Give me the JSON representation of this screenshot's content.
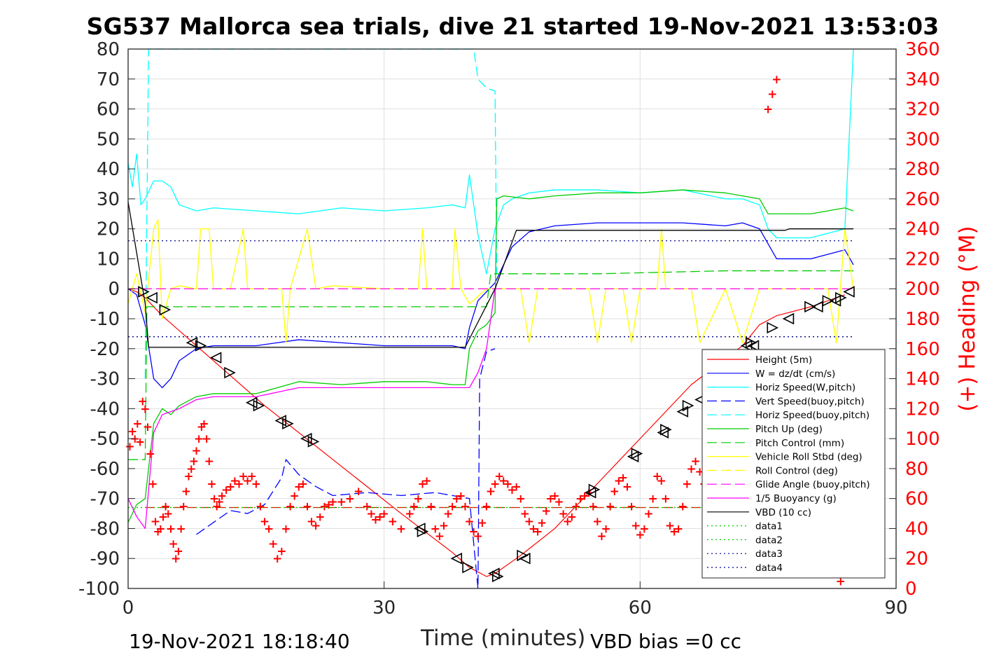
{
  "figure": {
    "title": "SG537 Mallorca sea trials, dive 21 started 19-Nov-2021 13:53:03",
    "footer_left": "19-Nov-2021 18:18:40",
    "footer_right": "VBD bias =0 cc"
  },
  "chart_data": {
    "type": "line",
    "xlabel": "Time (minutes)",
    "ylabel": "",
    "y2label": "(+) Heading (°M)",
    "xlim": [
      0,
      90
    ],
    "ylim": [
      -100,
      80
    ],
    "y2lim": [
      0,
      360
    ],
    "xticks": [
      0,
      30,
      60,
      90
    ],
    "yticks": [
      -100,
      -90,
      -80,
      -70,
      -60,
      -50,
      -40,
      -30,
      -20,
      -10,
      0,
      10,
      20,
      30,
      40,
      50,
      60,
      70,
      80
    ],
    "y2ticks": [
      0,
      20,
      40,
      60,
      80,
      100,
      120,
      140,
      160,
      180,
      200,
      220,
      240,
      260,
      280,
      300,
      320,
      340,
      360
    ],
    "grid": true,
    "legend_position": "bottom-right",
    "colors": {
      "red": "#ff0000",
      "blue": "#0000ff",
      "cyan": "#00ffff",
      "green": "#00cc00",
      "yellow": "#ffff00",
      "magenta": "#ff00ff",
      "black": "#000000",
      "navy": "#00008b"
    },
    "series": [
      {
        "name": "Height (5m)",
        "color": "#ff0000",
        "style": "solid",
        "x": [
          0,
          1,
          2,
          4,
          8,
          16,
          24,
          32,
          38,
          40,
          42,
          43,
          46,
          50,
          54,
          60,
          66,
          72,
          74,
          76,
          80,
          84
        ],
        "y": [
          0,
          -1,
          -3,
          -9,
          -19,
          -39,
          -57,
          -75,
          -88,
          -93,
          -96,
          -95,
          -89,
          -80,
          -68,
          -50,
          -32,
          -19,
          -12,
          -9,
          -6,
          -2
        ]
      },
      {
        "name": "W = dz/dt (cm/s)",
        "color": "#0000ff",
        "style": "solid",
        "x": [
          0,
          1,
          2,
          3,
          4,
          5,
          6,
          8,
          10,
          15,
          20,
          25,
          30,
          35,
          38,
          39.5,
          40,
          41,
          42,
          43,
          44,
          45,
          47,
          50,
          55,
          60,
          65,
          70,
          72,
          74,
          75,
          76,
          80,
          84,
          85
        ],
        "y": [
          0,
          -2,
          -12,
          -30,
          -33,
          -30,
          -24,
          -20,
          -19,
          -19,
          -17,
          -18,
          -19,
          -19,
          -19,
          -20,
          -13,
          -4,
          -1,
          2,
          8,
          14,
          19,
          21,
          22,
          22,
          22,
          21,
          22,
          20,
          15,
          10,
          10,
          13,
          8
        ]
      },
      {
        "name": "Horiz Speed(W,pitch)",
        "color": "#00ffff",
        "style": "solid",
        "x": [
          0,
          0.5,
          1,
          1.5,
          2,
          3,
          4,
          5,
          6,
          8,
          10,
          15,
          20,
          25,
          30,
          35,
          38,
          39.5,
          40,
          41,
          42,
          43,
          44,
          45,
          47,
          50,
          55,
          60,
          65,
          70,
          72,
          74,
          75,
          76,
          80,
          84,
          85
        ],
        "y": [
          42,
          34,
          45,
          28,
          30,
          36,
          36,
          34,
          28,
          26,
          27,
          26,
          25,
          27,
          26,
          27,
          28,
          27,
          38,
          18,
          5,
          20,
          28,
          30,
          32,
          33,
          33,
          32,
          33,
          30,
          30,
          28,
          20,
          17,
          17,
          20,
          80
        ]
      },
      {
        "name": "Vert Speed(buoy,pitch)",
        "color": "#0000ff",
        "style": "dashed",
        "x": [
          8,
          12,
          14,
          16,
          18,
          18.5,
          20,
          22,
          24,
          28,
          32,
          36,
          38,
          40,
          41,
          41.2,
          42,
          43
        ],
        "y": [
          -82,
          -74,
          -75,
          -72,
          -63,
          -57,
          -62,
          -66,
          -69,
          -68,
          -69,
          -68,
          -69,
          -70,
          -100,
          -30,
          -21,
          -20
        ]
      },
      {
        "name": "Horiz Speed(buoy,pitch)",
        "color": "#00ffff",
        "style": "dashed",
        "x": [
          2,
          2.4,
          2.6,
          40.5,
          41,
          42,
          43,
          43.2
        ],
        "y": [
          -30,
          80,
          80,
          80,
          70,
          67,
          66,
          5
        ]
      },
      {
        "name": "Pitch Up (deg)",
        "color": "#00cc00",
        "style": "solid",
        "x": [
          0,
          1,
          2,
          3,
          4,
          5,
          6,
          8,
          10,
          15,
          20,
          25,
          30,
          35,
          38,
          39.5,
          40,
          41,
          42,
          43,
          43.2,
          44,
          47,
          50,
          55,
          60,
          65,
          70,
          72,
          74,
          75,
          76,
          80,
          84,
          85
        ],
        "y": [
          -78,
          -72,
          -70,
          -45,
          -40,
          -42,
          -39,
          -36,
          -35,
          -35,
          -31,
          -32,
          -31,
          -31,
          -32,
          -32,
          -20,
          -14,
          -12,
          -8,
          30,
          31,
          30,
          31,
          32,
          32,
          33,
          32,
          31,
          30,
          25,
          25,
          25,
          27,
          26
        ]
      },
      {
        "name": "Pitch Control (mm)",
        "color": "#00cc00",
        "style": "dashed",
        "x": [
          0,
          2,
          2.2,
          10,
          30,
          42,
          42.5,
          43,
          55,
          70,
          85
        ],
        "y": [
          -57,
          -57,
          -6,
          -6,
          -6,
          -6,
          5,
          5,
          5,
          6,
          6
        ]
      },
      {
        "name": "Vehicle Roll Stbd (deg)",
        "color": "#ffff00",
        "style": "solid",
        "x": [
          0,
          1,
          2,
          3,
          3.5,
          4,
          5,
          6,
          8,
          8.5,
          9.5,
          10,
          12,
          13.5,
          14,
          16,
          18,
          18.5,
          19,
          21,
          22,
          24,
          30,
          34,
          34.5,
          35,
          38,
          38.3,
          39,
          40,
          42,
          44,
          46,
          47,
          48,
          52,
          54,
          55,
          56,
          58,
          59,
          60,
          62,
          62.5,
          63,
          66,
          67,
          70,
          72,
          74,
          78,
          82,
          83,
          84,
          85
        ],
        "y": [
          -5,
          5,
          -8,
          20,
          23,
          -10,
          0,
          1,
          0,
          20,
          20,
          0,
          0,
          20,
          0,
          0,
          0,
          -18,
          0,
          20,
          0,
          1,
          0,
          0,
          20,
          0,
          0,
          20,
          0,
          -5,
          0,
          0,
          0,
          -18,
          0,
          0,
          0,
          -18,
          0,
          0,
          -18,
          0,
          0,
          20,
          0,
          0,
          -18,
          0,
          -18,
          0,
          0,
          0,
          -18,
          20,
          0
        ]
      },
      {
        "name": "Roll Control (deg)",
        "color": "#ffff00",
        "style": "dashed",
        "x": [
          0,
          42,
          43,
          85
        ],
        "y": [
          0,
          0,
          0,
          0
        ]
      },
      {
        "name": "Glide Angle (buoy,pitch)",
        "color": "#ff00ff",
        "style": "dashed",
        "x": [
          0,
          42,
          43,
          85
        ],
        "y": [
          0,
          0,
          0,
          0
        ]
      },
      {
        "name": "1/5 Buoyancy (g)",
        "color": "#ff00ff",
        "style": "solid",
        "x": [
          0,
          1,
          2,
          3,
          4,
          6,
          8,
          10,
          15,
          20,
          25,
          30,
          35,
          38,
          40,
          41,
          42,
          43
        ],
        "y": [
          -70,
          -76,
          -80,
          -48,
          -42,
          -40,
          -37,
          -36,
          -36,
          -33,
          -33,
          -33,
          -33,
          -33,
          -33,
          -28,
          -20,
          0
        ]
      },
      {
        "name": "VBD (10 cc)",
        "color": "#000000",
        "style": "solid",
        "x": [
          0,
          2,
          2.4,
          5,
          10,
          20,
          30,
          38,
          39.5,
          43,
          45.5,
          50,
          60,
          70,
          77,
          77.5,
          85
        ],
        "y": [
          29,
          -5,
          -19.5,
          -19.5,
          -19.5,
          -19.5,
          -19.5,
          -19.5,
          -19.5,
          0,
          19.5,
          19.5,
          19.5,
          19.5,
          19.5,
          20,
          20
        ]
      },
      {
        "name": "data1",
        "color": "#00cc00",
        "style": "dotted",
        "x": [
          0,
          85
        ],
        "y": [
          -73,
          -73
        ]
      },
      {
        "name": "data2",
        "color": "#00cc00",
        "style": "dotted",
        "x": [
          0,
          85
        ],
        "y": [
          -73,
          -73
        ]
      },
      {
        "name": "data3",
        "color": "#00008b",
        "style": "dotted",
        "x": [
          0,
          85
        ],
        "y": [
          16,
          16
        ]
      },
      {
        "name": "data4",
        "color": "#00008b",
        "style": "dotted",
        "x": [
          0,
          85
        ],
        "y": [
          -16,
          -16
        ]
      }
    ],
    "reference_lines": [
      {
        "color": "#ff0000",
        "style": "dashed",
        "x": [
          2,
          85
        ],
        "y": [
          -73,
          -73
        ]
      }
    ],
    "heading_markers": {
      "marker": "+",
      "color": "#ff0000",
      "axis": "y2",
      "x": [
        0.2,
        0.5,
        0.8,
        1.1,
        1.4,
        1.7,
        2.0,
        2.3,
        2.6,
        2.9,
        3.2,
        3.5,
        3.8,
        4.1,
        4.4,
        4.7,
        5.0,
        5.3,
        5.6,
        5.9,
        6.2,
        6.5,
        6.8,
        7.1,
        7.4,
        7.7,
        8.0,
        8.3,
        8.6,
        8.9,
        9.2,
        9.5,
        9.8,
        10.1,
        10.4,
        10.7,
        11.0,
        11.5,
        12.0,
        12.5,
        13.0,
        13.5,
        14.0,
        14.5,
        15.0,
        15.5,
        16.0,
        16.5,
        17.0,
        17.5,
        18.0,
        18.5,
        19.0,
        19.5,
        20.0,
        20.5,
        21.0,
        21.5,
        22.0,
        22.5,
        23.0,
        23.5,
        24.0,
        25.0,
        26.0,
        27.0,
        28.0,
        28.5,
        29.0,
        29.5,
        30.0,
        31.0,
        32.0,
        33.0,
        33.5,
        34.0,
        34.5,
        35.0,
        35.5,
        36.0,
        36.5,
        37.0,
        37.5,
        38.0,
        38.5,
        39.0,
        39.5,
        40.0,
        40.5,
        41.0,
        41.5,
        42.0,
        42.5,
        43.0,
        43.5,
        44.0,
        44.5,
        45.0,
        45.5,
        46.0,
        46.5,
        47.0,
        47.5,
        48.0,
        48.5,
        49.0,
        49.5,
        50.0,
        50.5,
        51.0,
        51.5,
        52.0,
        52.5,
        53.0,
        53.5,
        54.0,
        54.5,
        55.0,
        55.5,
        56.0,
        56.5,
        57.0,
        57.5,
        58.0,
        58.5,
        59.0,
        59.5,
        60.0,
        60.5,
        61.0,
        61.5,
        62.0,
        62.5,
        63.0,
        63.5,
        64.0,
        64.5,
        65.0,
        65.5,
        66.0,
        66.5,
        67.0,
        67.5,
        68.0,
        68.5,
        69.0,
        69.5,
        70.0,
        70.5,
        71.0,
        71.5,
        72.0,
        72.5,
        73.0,
        73.5,
        74.0,
        74.5,
        75.0,
        75.5,
        76.0,
        83.5
      ],
      "y": [
        95,
        105,
        100,
        110,
        98,
        125,
        120,
        108,
        90,
        70,
        45,
        38,
        40,
        48,
        55,
        50,
        40,
        30,
        20,
        25,
        40,
        55,
        65,
        75,
        80,
        85,
        92,
        100,
        108,
        110,
        100,
        85,
        70,
        60,
        55,
        58,
        62,
        66,
        68,
        72,
        70,
        75,
        72,
        75,
        70,
        55,
        45,
        40,
        30,
        20,
        25,
        40,
        55,
        62,
        68,
        70,
        55,
        45,
        42,
        48,
        55,
        56,
        58,
        58,
        60,
        65,
        55,
        50,
        46,
        48,
        50,
        45,
        40,
        50,
        55,
        60,
        70,
        72,
        55,
        40,
        35,
        42,
        50,
        55,
        60,
        62,
        55,
        45,
        38,
        35,
        44,
        55,
        65,
        70,
        75,
        72,
        70,
        66,
        68,
        60,
        50,
        45,
        40,
        38,
        44,
        52,
        60,
        62,
        58,
        50,
        45,
        48,
        55,
        60,
        62,
        64,
        55,
        45,
        35,
        40,
        55,
        65,
        72,
        74,
        68,
        55,
        42,
        36,
        40,
        50,
        60,
        75,
        72,
        60,
        42,
        38,
        40,
        55,
        70,
        80,
        85,
        78,
        70,
        65,
        60,
        52,
        40,
        25,
        22,
        24,
        30,
        40,
        55,
        62,
        72,
        78,
        80,
        320,
        330,
        340,
        5
      ]
    },
    "vbd_markers": {
      "marker": "triangle",
      "color": "#000000",
      "x": [
        1.8,
        2.8,
        4.3,
        7.5,
        8.5,
        10.3,
        11.9,
        14.5,
        15.3,
        17.9,
        18.7,
        20.9,
        21.7,
        34.2,
        34.5,
        38.5,
        39.8,
        42.9,
        43.3,
        46.5,
        46.2,
        54.2,
        54.6,
        59.2,
        59.6,
        62.7,
        63.0,
        65.0,
        65.6,
        67.1,
        68.8,
        72.5,
        73.0,
        73.3,
        75.5,
        77.4,
        79.9,
        80.8,
        82.0,
        82.9,
        83.5,
        84.5
      ],
      "y": [
        -1,
        -3,
        -7,
        -18,
        -19,
        -23,
        -28,
        -38,
        -39,
        -44,
        -45,
        -50,
        -51,
        -80,
        -81,
        -90,
        -93,
        -95,
        -96,
        -90,
        -89,
        -68,
        -67,
        -56,
        -55,
        -48,
        -47,
        -41,
        -39,
        -37,
        -33,
        -19,
        -18,
        -19,
        -13,
        -10,
        -6,
        -6,
        -4,
        -4,
        -3,
        -1
      ]
    }
  }
}
